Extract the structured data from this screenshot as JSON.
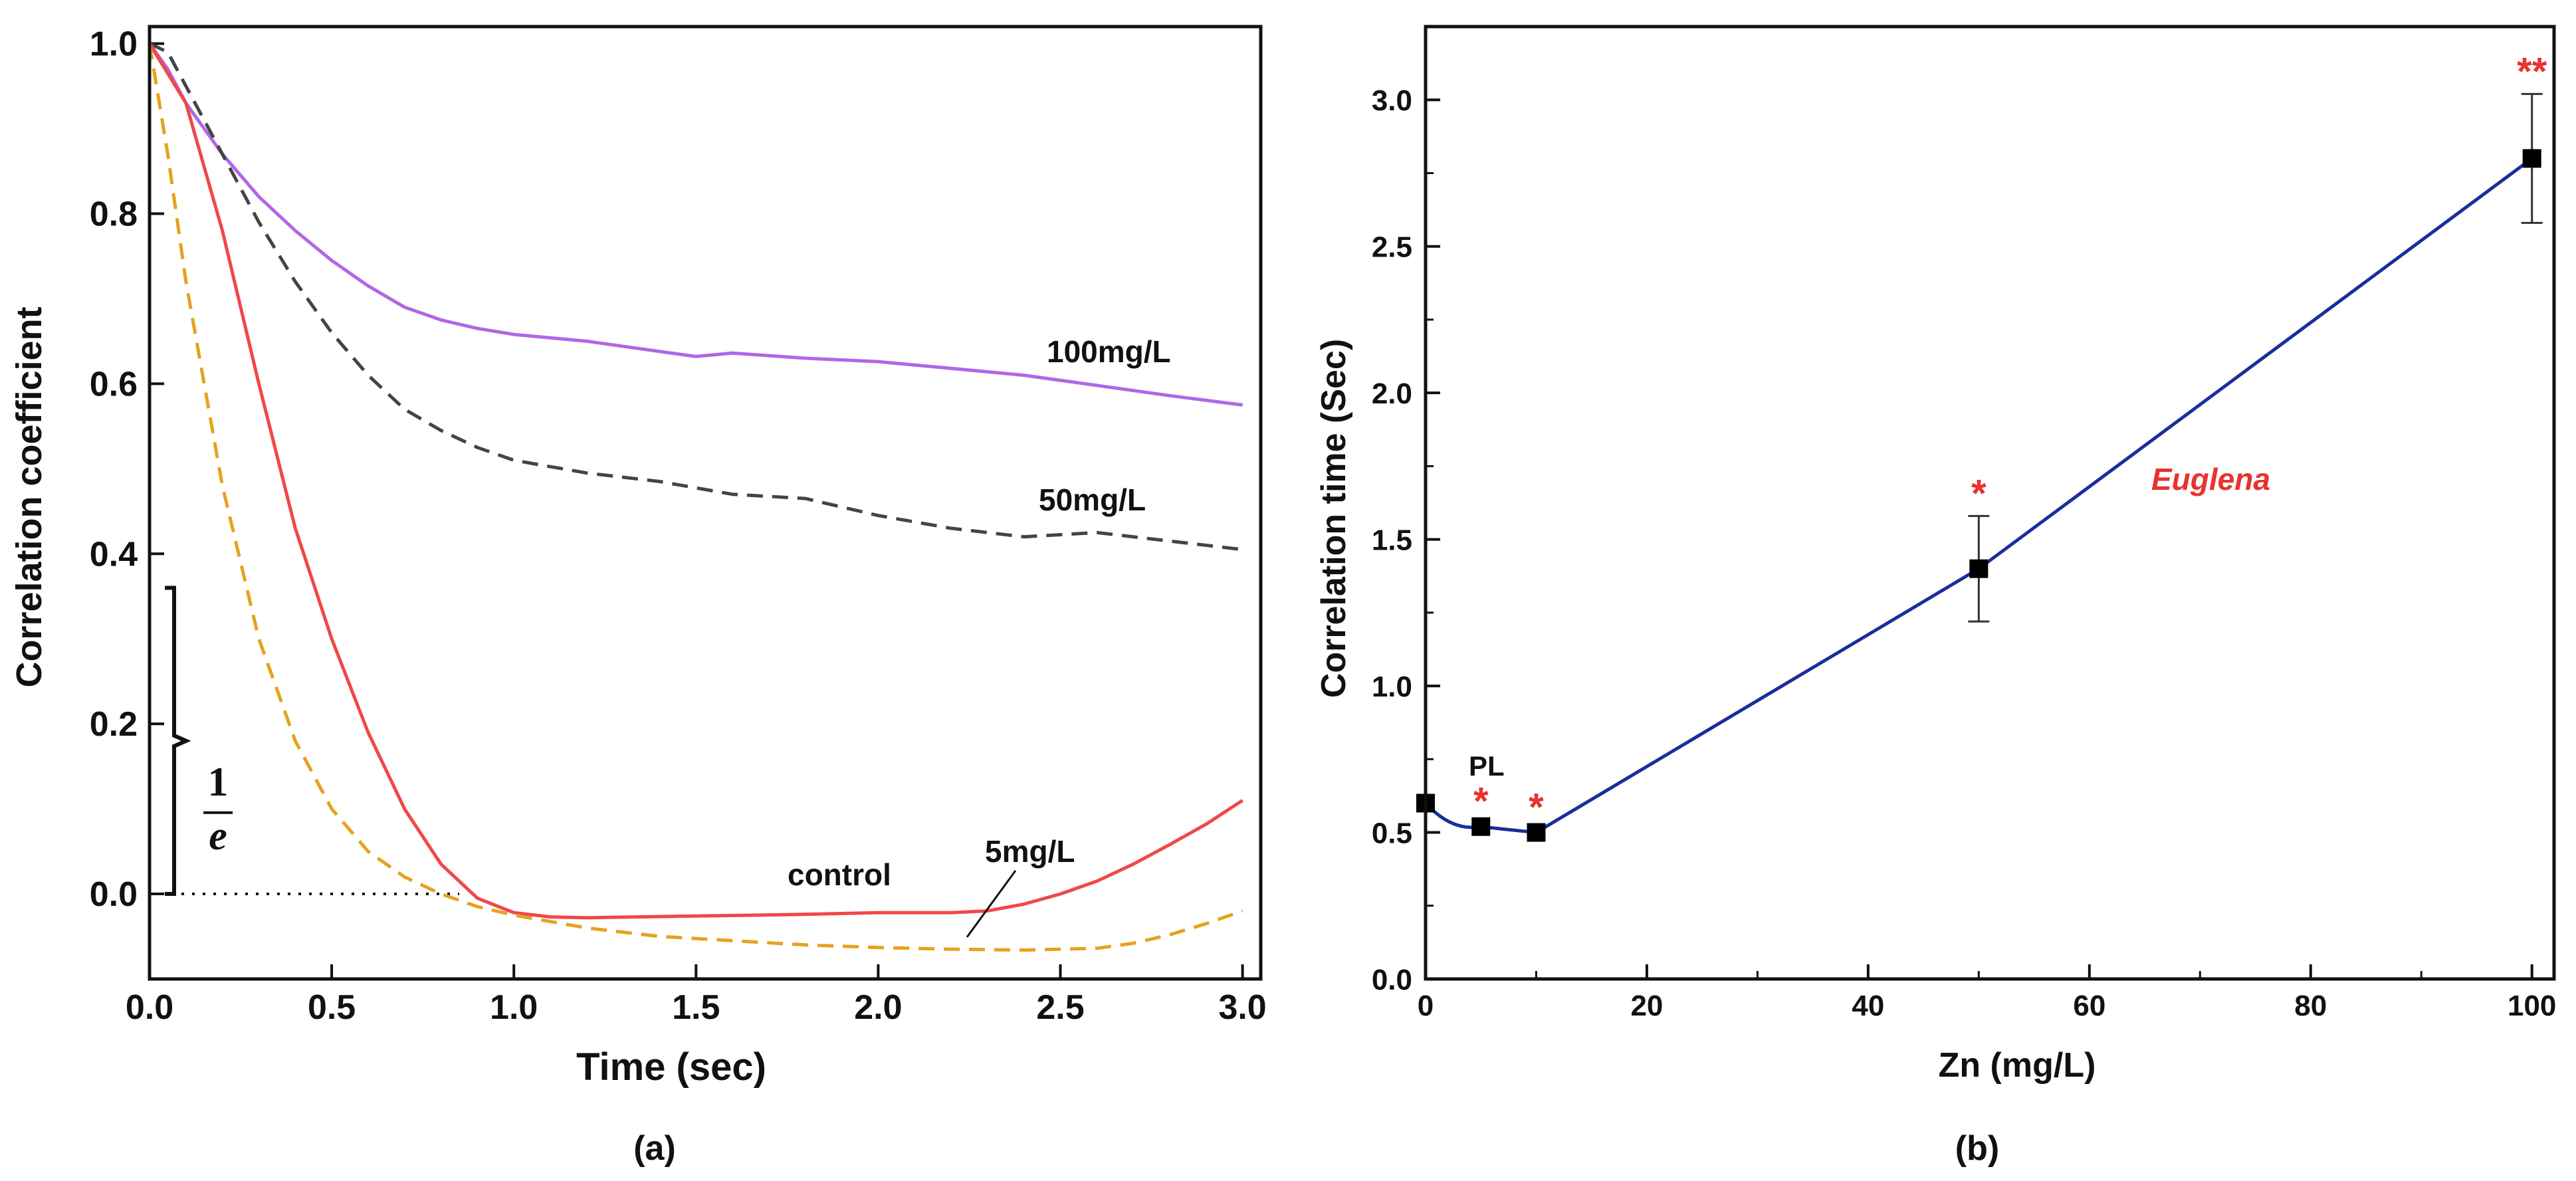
{
  "chart_data": [
    {
      "type": "line",
      "panel_label": "(a)",
      "xlabel": "Time (sec)",
      "ylabel": "Correlation coefficient",
      "xlim": [
        0,
        3.05
      ],
      "ylim": [
        -0.1,
        1.02
      ],
      "x_ticks": [
        "0.0",
        "0.5",
        "1.0",
        "1.5",
        "2.0",
        "2.5",
        "3.0"
      ],
      "x_tick_values": [
        0,
        0.5,
        1.0,
        1.5,
        2.0,
        2.5,
        3.0
      ],
      "y_ticks": [
        "0.0",
        "0.2",
        "0.4",
        "0.6",
        "0.8",
        "1.0"
      ],
      "y_tick_values": [
        0,
        0.2,
        0.4,
        0.6,
        0.8,
        1.0
      ],
      "series": [
        {
          "name": "100mg/L",
          "color": "#b266e6",
          "style": "solid",
          "x": [
            0,
            0.05,
            0.1,
            0.2,
            0.3,
            0.4,
            0.5,
            0.6,
            0.7,
            0.8,
            0.9,
            1.0,
            1.2,
            1.4,
            1.5,
            1.6,
            1.8,
            2.0,
            2.2,
            2.4,
            2.6,
            2.8,
            3.0
          ],
          "y": [
            1.0,
            0.97,
            0.93,
            0.87,
            0.82,
            0.78,
            0.745,
            0.715,
            0.69,
            0.675,
            0.665,
            0.658,
            0.65,
            0.638,
            0.632,
            0.636,
            0.63,
            0.626,
            0.618,
            0.61,
            0.598,
            0.586,
            0.575
          ]
        },
        {
          "name": "50mg/L",
          "color": "#444444",
          "style": "dashed",
          "x": [
            0,
            0.05,
            0.1,
            0.2,
            0.3,
            0.4,
            0.5,
            0.6,
            0.7,
            0.8,
            0.9,
            1.0,
            1.2,
            1.4,
            1.6,
            1.8,
            2.0,
            2.2,
            2.4,
            2.6,
            2.8,
            3.0
          ],
          "y": [
            1.0,
            0.99,
            0.95,
            0.87,
            0.79,
            0.72,
            0.66,
            0.61,
            0.57,
            0.545,
            0.525,
            0.51,
            0.495,
            0.485,
            0.47,
            0.465,
            0.445,
            0.43,
            0.42,
            0.425,
            0.415,
            0.405
          ]
        },
        {
          "name": "control",
          "color": "#f04848",
          "style": "solid",
          "x": [
            0,
            0.1,
            0.2,
            0.3,
            0.4,
            0.5,
            0.6,
            0.7,
            0.8,
            0.9,
            1.0,
            1.1,
            1.2,
            1.5,
            1.8,
            2.0,
            2.2,
            2.3,
            2.4,
            2.5,
            2.6,
            2.7,
            2.8,
            2.9,
            3.0
          ],
          "y": [
            1.0,
            0.93,
            0.78,
            0.6,
            0.43,
            0.3,
            0.19,
            0.1,
            0.035,
            -0.005,
            -0.022,
            -0.027,
            -0.028,
            -0.026,
            -0.024,
            -0.022,
            -0.022,
            -0.02,
            -0.012,
            0.0,
            0.015,
            0.035,
            0.058,
            0.082,
            0.11
          ]
        },
        {
          "name": "5mg/L",
          "color": "#e6a21e",
          "style": "dashed",
          "x": [
            0,
            0.05,
            0.1,
            0.2,
            0.3,
            0.4,
            0.5,
            0.6,
            0.7,
            0.8,
            0.9,
            1.0,
            1.2,
            1.4,
            1.6,
            1.8,
            2.0,
            2.2,
            2.4,
            2.6,
            2.7,
            2.8,
            2.9,
            3.0
          ],
          "y": [
            1.0,
            0.87,
            0.72,
            0.48,
            0.3,
            0.18,
            0.1,
            0.05,
            0.02,
            0.0,
            -0.015,
            -0.025,
            -0.04,
            -0.05,
            -0.055,
            -0.06,
            -0.063,
            -0.065,
            -0.066,
            -0.064,
            -0.058,
            -0.048,
            -0.035,
            -0.02
          ]
        }
      ],
      "reference_line": {
        "y": 0,
        "x_start": 0,
        "x_end": 0.85,
        "style": "dotted"
      },
      "bracket": {
        "y_from": 0,
        "y_to": 0.36,
        "label_numerator": "1",
        "label_denominator": "e"
      },
      "annotations": {
        "label_100": "100mg/L",
        "label_50": "50mg/L",
        "label_control": "control",
        "label_5": "5mg/L"
      }
    },
    {
      "type": "line",
      "panel_label": "(b)",
      "xlabel": "Zn (mg/L)",
      "ylabel": "Correlation time (Sec)",
      "xlim": [
        0,
        102
      ],
      "ylim": [
        0,
        3.25
      ],
      "x_ticks": [
        "0",
        "20",
        "40",
        "60",
        "80",
        "100"
      ],
      "x_tick_values": [
        0,
        20,
        40,
        60,
        80,
        100
      ],
      "y_ticks": [
        "0.0",
        "0.5",
        "1.0",
        "1.5",
        "2.0",
        "2.5",
        "3.0"
      ],
      "y_tick_values": [
        0,
        0.5,
        1.0,
        1.5,
        2.0,
        2.5,
        3.0
      ],
      "series": [
        {
          "name": "Euglena",
          "color": "#1a2e9a",
          "marker": "square",
          "x": [
            0,
            5,
            10,
            50,
            100
          ],
          "y": [
            0.6,
            0.52,
            0.5,
            1.4,
            2.8
          ],
          "error": [
            null,
            null,
            null,
            0.18,
            0.22
          ],
          "significance": [
            "",
            "*",
            "*",
            "*",
            "**"
          ]
        }
      ],
      "annotations": {
        "label_pl": "PL",
        "label_species": "Euglena"
      }
    }
  ]
}
